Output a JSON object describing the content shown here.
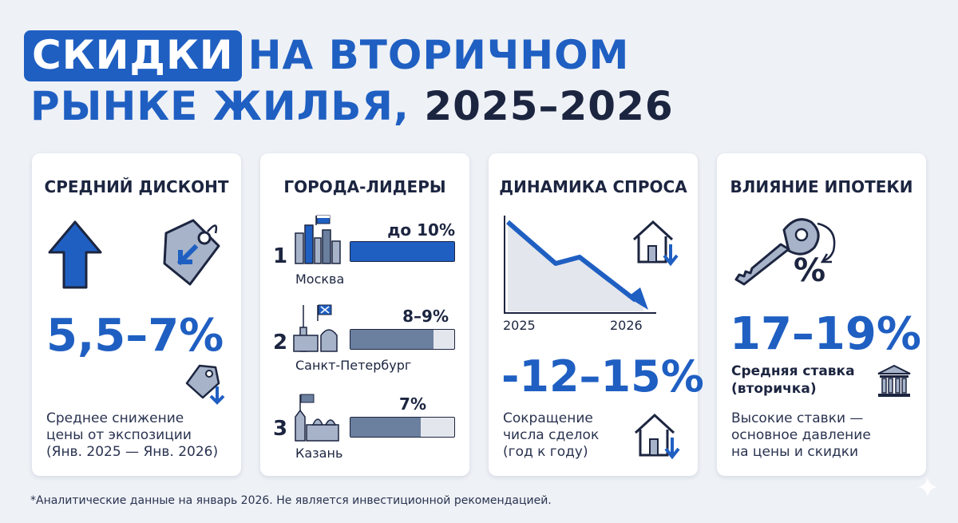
{
  "title": {
    "highlight": "СКИДКИ",
    "line1_rest": "НА ВТОРИЧНОМ",
    "line2_blue": "РЫНКЕ ЖИЛЬЯ,",
    "line2_dark": "2025–2026"
  },
  "card1": {
    "title": "СРЕДНИЙ ДИСКОНТ",
    "value": "5,5–7%",
    "description": [
      "Среднее снижение",
      "цены от экспозиции",
      "(Янв. 2025 — Янв. 2026)"
    ],
    "icons": [
      "arrow-up-icon",
      "price-tag-down-icon",
      "small-tag-down-icon"
    ]
  },
  "card2": {
    "title": "ГОРОДА-ЛИДЕРЫ",
    "cities": [
      {
        "rank": "1",
        "name": "Москва",
        "value": "до 10%",
        "fill": 1.0,
        "color": "#1f5fc2"
      },
      {
        "rank": "2",
        "name": "Санкт-Петербург",
        "value": "8–9%",
        "fill": 0.8,
        "color": "#6b7f9e"
      },
      {
        "rank": "3",
        "name": "Казань",
        "value": "7%",
        "fill": 0.68,
        "color": "#6b7f9e"
      }
    ]
  },
  "card3": {
    "title": "ДИНАМИКА СПРОСА",
    "value": "-12–15%",
    "chart_x_labels": [
      "2025",
      "2026"
    ],
    "description": [
      "Сокращение",
      "числа сделок",
      "(год к году)"
    ],
    "icons": [
      "house-down-icon",
      "house-down-icon"
    ]
  },
  "card4": {
    "title": "ВЛИЯНИЕ ИПОТЕКИ",
    "value": "17–19%",
    "percent_sign": "%",
    "subtitle": [
      "Средняя ставка",
      "(вторичка)"
    ],
    "description": [
      "Высокие ставки —",
      "основное давление",
      "на цены и скидки"
    ],
    "icons": [
      "key-icon",
      "bank-icon"
    ]
  },
  "footnote": "*Аналитические данные на январь 2026. Не является инвестиционной рекомендацией.",
  "colors": {
    "accent": "#1f5fc2",
    "dark": "#1c2540",
    "gray": "#6b7f9e",
    "background": "#eef1f6"
  }
}
